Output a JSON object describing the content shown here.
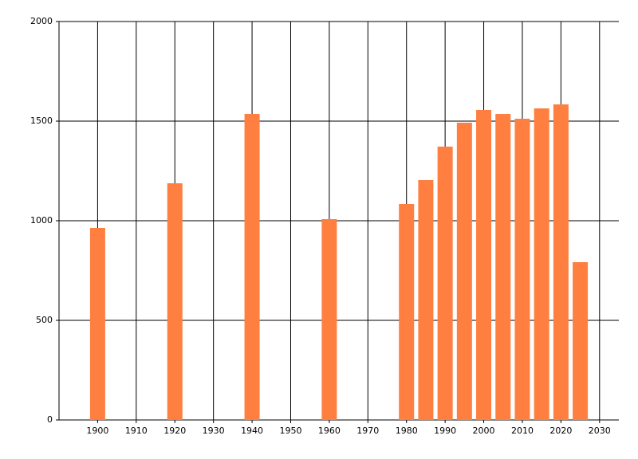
{
  "chart_data": {
    "type": "bar",
    "x": [
      1900,
      1920,
      1940,
      1960,
      1980,
      1985,
      1990,
      1995,
      2000,
      2005,
      2010,
      2015,
      2020,
      2025
    ],
    "values": [
      964,
      1188,
      1536,
      1008,
      1084,
      1204,
      1372,
      1492,
      1556,
      1536,
      1512,
      1564,
      1584,
      792
    ],
    "color": "#ff7f40",
    "xlim": [
      1890,
      2035
    ],
    "xticks": [
      1900,
      1910,
      1920,
      1930,
      1940,
      1950,
      1960,
      1970,
      1980,
      1990,
      2000,
      2010,
      2020,
      2030
    ],
    "ylim": [
      0,
      2000
    ],
    "yticks": [
      0,
      500,
      1000,
      1500,
      2000
    ],
    "grid": true
  }
}
